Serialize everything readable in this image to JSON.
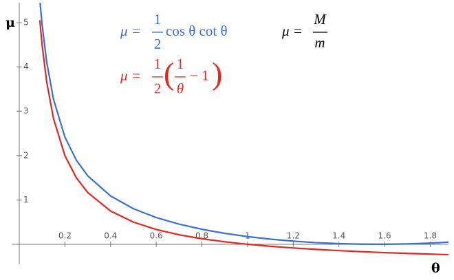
{
  "chart_data": {
    "type": "line",
    "x_label": "θ",
    "y_label": "μ",
    "x": [
      0.09,
      0.1,
      0.12,
      0.15,
      0.2,
      0.25,
      0.3,
      0.4,
      0.5,
      0.6,
      0.7,
      0.8,
      0.9,
      1.0,
      1.1,
      1.2,
      1.3,
      1.4,
      1.5,
      1.6,
      1.7,
      1.8,
      1.88
    ],
    "series": [
      {
        "color": "#3a6fd8",
        "values": [
          5.518,
          4.96,
          4.117,
          3.271,
          2.417,
          1.897,
          1.544,
          1.089,
          0.803,
          0.603,
          0.454,
          0.338,
          0.247,
          0.173,
          0.115,
          0.0704,
          0.0371,
          0.0147,
          0.0025,
          0.0004,
          0.0084,
          0.0265,
          0.0486
        ]
      },
      {
        "color": "#e8251c",
        "values": [
          5.056,
          4.5,
          3.667,
          2.833,
          2.0,
          1.5,
          1.167,
          0.75,
          0.5,
          0.333,
          0.214,
          0.125,
          0.056,
          0.0,
          -0.045,
          -0.083,
          -0.115,
          -0.143,
          -0.167,
          -0.188,
          -0.206,
          -0.222,
          -0.234
        ]
      }
    ],
    "xlim": [
      0,
      1.88
    ],
    "ylim": [
      -0.45,
      5.45
    ],
    "xticks": [
      0.2,
      0.4,
      0.6,
      0.8,
      1,
      1.2,
      1.4,
      1.6,
      1.8
    ],
    "yticks": [
      1,
      2,
      3,
      4,
      5
    ],
    "annotations": [
      {
        "color": "#3a6fd8",
        "lhs": "μ =",
        "num": "1",
        "den": "2",
        "rest": "cos θ cot θ"
      },
      {
        "color": "#e8251c",
        "lhs": "μ =",
        "num": "1",
        "den": "2",
        "open": "(",
        "inner_num": "1",
        "inner_den": "θ",
        "rest": "− 1",
        "close": ")"
      },
      {
        "color": "#000000",
        "lhs": "μ =",
        "num": "M",
        "den": "m"
      }
    ]
  }
}
